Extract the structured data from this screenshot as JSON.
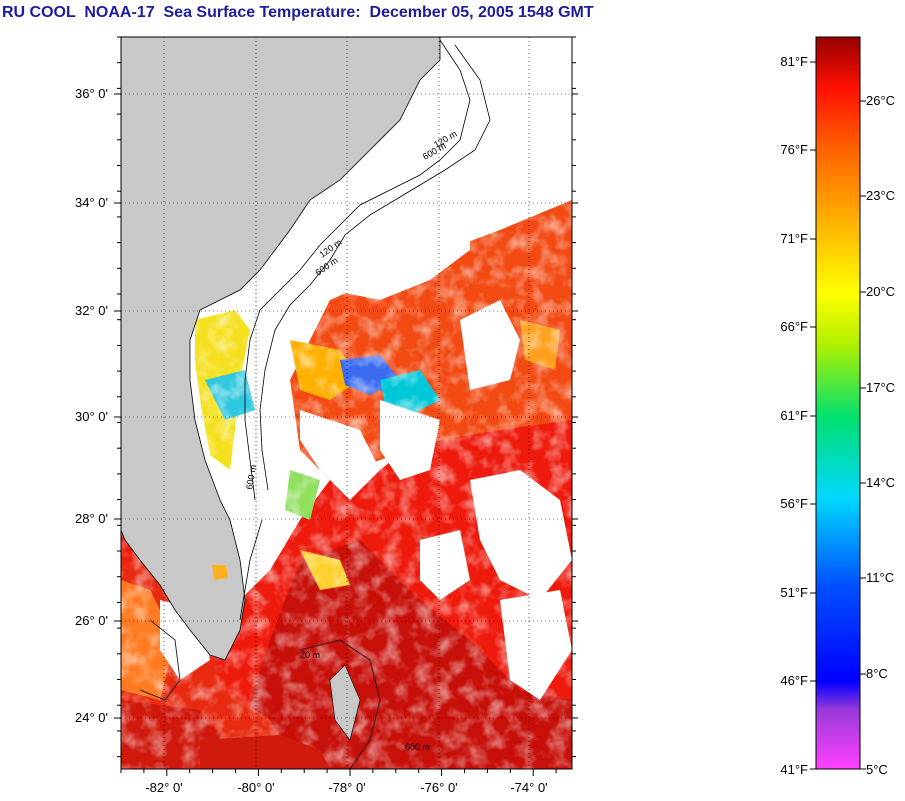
{
  "title": "RU COOL  NOAA-17  Sea Surface Temperature:  December 05, 2005 1548 GMT",
  "map": {
    "lat_labels": [
      "36° 0'",
      "34° 0'",
      "32° 0'",
      "30° 0'",
      "28° 0'",
      "26° 0'",
      "24° 0'"
    ],
    "lon_labels": [
      "-82° 0'",
      "-80° 0'",
      "-78° 0'",
      "-76° 0'",
      "-74° 0'"
    ],
    "contour_labels": [
      "120 m",
      "600 m",
      "20 m",
      "600 m",
      "600 m",
      "120 m",
      "600 m"
    ],
    "colors": {
      "land": "#c8c8c8",
      "cloud": "#ffffff",
      "warm_water": "#e8140a",
      "gulf_stream": "#c8100a",
      "cool_water": "#ff6a10"
    }
  },
  "colorbar": {
    "fahrenheit_labels": [
      "81°F",
      "76°F",
      "71°F",
      "66°F",
      "61°F",
      "56°F",
      "51°F",
      "46°F",
      "41°F"
    ],
    "celsius_labels": [
      "26°C",
      "23°C",
      "20°C",
      "17°C",
      "14°C",
      "11°C",
      "8°C",
      "5°C"
    ]
  }
}
